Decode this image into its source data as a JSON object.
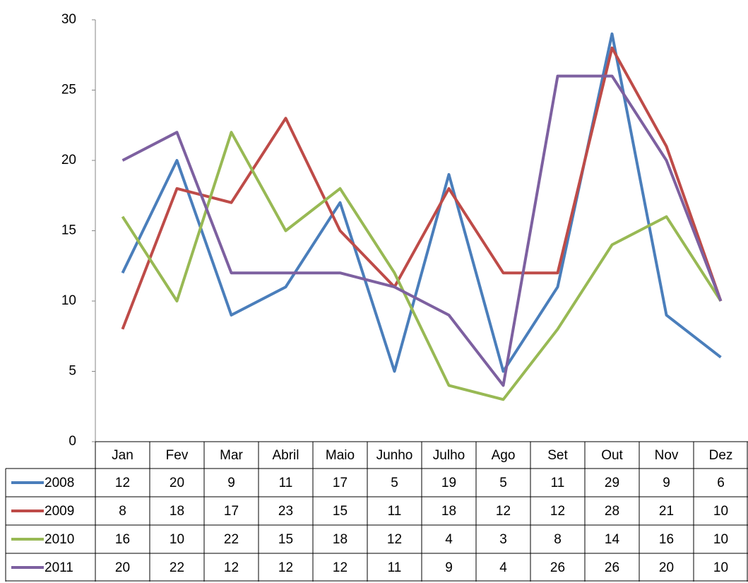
{
  "chart_data": {
    "type": "line",
    "categories": [
      "Jan",
      "Fev",
      "Mar",
      "Abril",
      "Maio",
      "Junho",
      "Julho",
      "Ago",
      "Set",
      "Out",
      "Nov",
      "Dez"
    ],
    "series": [
      {
        "name": "2008",
        "color": "#4a7ebb",
        "values": [
          12,
          20,
          9,
          11,
          17,
          5,
          19,
          5,
          11,
          29,
          9,
          6
        ]
      },
      {
        "name": "2009",
        "color": "#be4b48",
        "values": [
          8,
          18,
          17,
          23,
          15,
          11,
          18,
          12,
          12,
          28,
          21,
          10
        ]
      },
      {
        "name": "2010",
        "color": "#98b954",
        "values": [
          16,
          10,
          22,
          15,
          18,
          12,
          4,
          3,
          8,
          14,
          16,
          10
        ]
      },
      {
        "name": "2011",
        "color": "#7d60a0",
        "values": [
          20,
          22,
          12,
          12,
          12,
          11,
          9,
          4,
          26,
          26,
          20,
          10
        ]
      }
    ],
    "ylim": [
      0,
      30
    ],
    "yticks": [
      0,
      5,
      10,
      15,
      20,
      25,
      30
    ],
    "grid": false
  }
}
